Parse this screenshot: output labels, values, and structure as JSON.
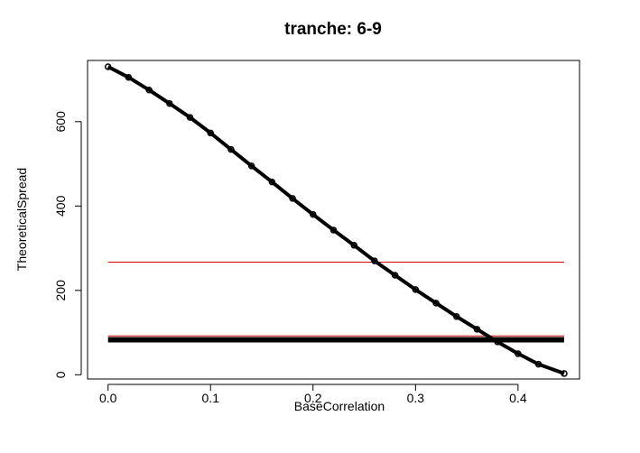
{
  "chart_data": {
    "type": "line",
    "title": "tranche:  6-9",
    "xlabel": "BaseCorrelation",
    "ylabel": "TheoreticalSpread",
    "xlim": [
      -0.02,
      0.46
    ],
    "ylim": [
      -10,
      745
    ],
    "x_ticks": [
      0.0,
      0.1,
      0.2,
      0.3,
      0.4
    ],
    "x_tick_labels": [
      "0.0",
      "0.1",
      "0.2",
      "0.3",
      "0.4"
    ],
    "y_ticks": [
      0,
      200,
      400,
      600
    ],
    "y_tick_labels": [
      "0",
      "200",
      "400",
      "600"
    ],
    "grid": false,
    "legend": "none",
    "series": [
      {
        "style": "points-line",
        "color": "#000000",
        "x": [
          0.0,
          0.02,
          0.04,
          0.06,
          0.08,
          0.1,
          0.12,
          0.14,
          0.16,
          0.18,
          0.2,
          0.22,
          0.24,
          0.26,
          0.28,
          0.3,
          0.32,
          0.34,
          0.36,
          0.38,
          0.4,
          0.42,
          0.445
        ],
        "y": [
          730,
          705,
          675,
          643,
          610,
          573,
          534,
          495,
          457,
          418,
          380,
          343,
          307,
          270,
          236,
          202,
          170,
          138,
          108,
          78,
          50,
          25,
          3
        ]
      }
    ],
    "hlines": [
      {
        "y": 267,
        "color": "#e00000",
        "x": [
          0.0,
          0.445
        ]
      },
      {
        "y": 92,
        "color": "#e00000",
        "x": [
          0.0,
          0.445
        ]
      },
      {
        "y": 83,
        "color": "#000000",
        "x": [
          0.0,
          0.445
        ],
        "thick": true
      }
    ]
  }
}
